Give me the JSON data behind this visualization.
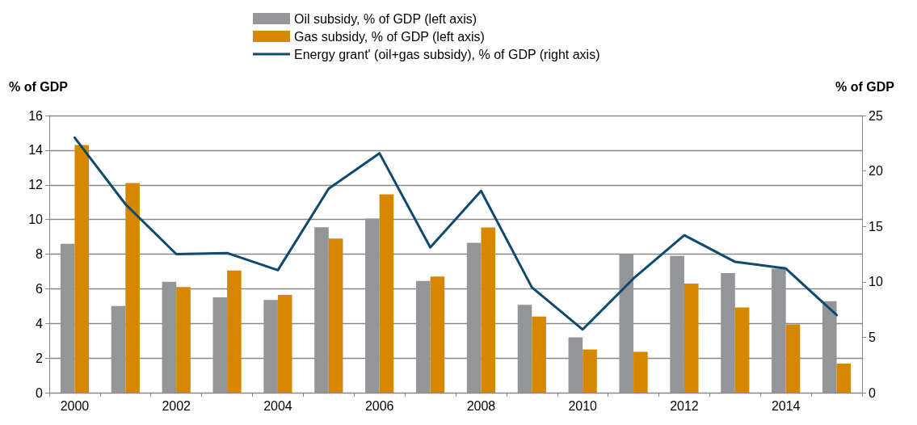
{
  "chart_data": {
    "type": "bar",
    "ylabel": "% of GDP",
    "y2label": "% of GDP",
    "categories": [
      "2000",
      null,
      "2002",
      null,
      "2004",
      null,
      "2006",
      null,
      "2008",
      null,
      "2010",
      null,
      "2012",
      null,
      "2014",
      null
    ],
    "series": [
      {
        "name": "Oil subsidy, % of GDP (left axis)",
        "color": "#939598",
        "values": [
          8.6,
          5.0,
          6.4,
          5.5,
          5.35,
          9.55,
          10.05,
          6.45,
          8.65,
          5.07,
          3.2,
          8.0,
          7.9,
          6.9,
          7.16,
          5.28
        ]
      },
      {
        "name": "Gas subsidy, % of GDP (left axis)",
        "color": "#d68700",
        "values": [
          14.3,
          12.1,
          6.1,
          7.05,
          5.65,
          8.9,
          11.45,
          6.7,
          9.54,
          4.4,
          2.5,
          2.36,
          6.3,
          4.92,
          3.94,
          1.68
        ]
      },
      {
        "name": "Energy grant' (oil+gas subsidy), % of GDP (right axis)",
        "type": "line",
        "axis": "y2",
        "color": "#0d4a6e",
        "values": [
          23.0,
          17.0,
          12.5,
          12.6,
          11.05,
          18.4,
          21.6,
          13.1,
          18.2,
          9.5,
          5.7,
          10.3,
          14.2,
          11.8,
          11.2,
          7.0
        ]
      }
    ],
    "ylim": [
      0,
      16
    ],
    "yticks": [
      0,
      2,
      4,
      6,
      8,
      10,
      12,
      14,
      16
    ],
    "y2lim": [
      0,
      25
    ],
    "y2ticks": [
      0,
      5,
      10,
      15,
      20,
      25
    ],
    "grid": "y",
    "legend": "top",
    "marker": "none",
    "line_style": "solid"
  }
}
